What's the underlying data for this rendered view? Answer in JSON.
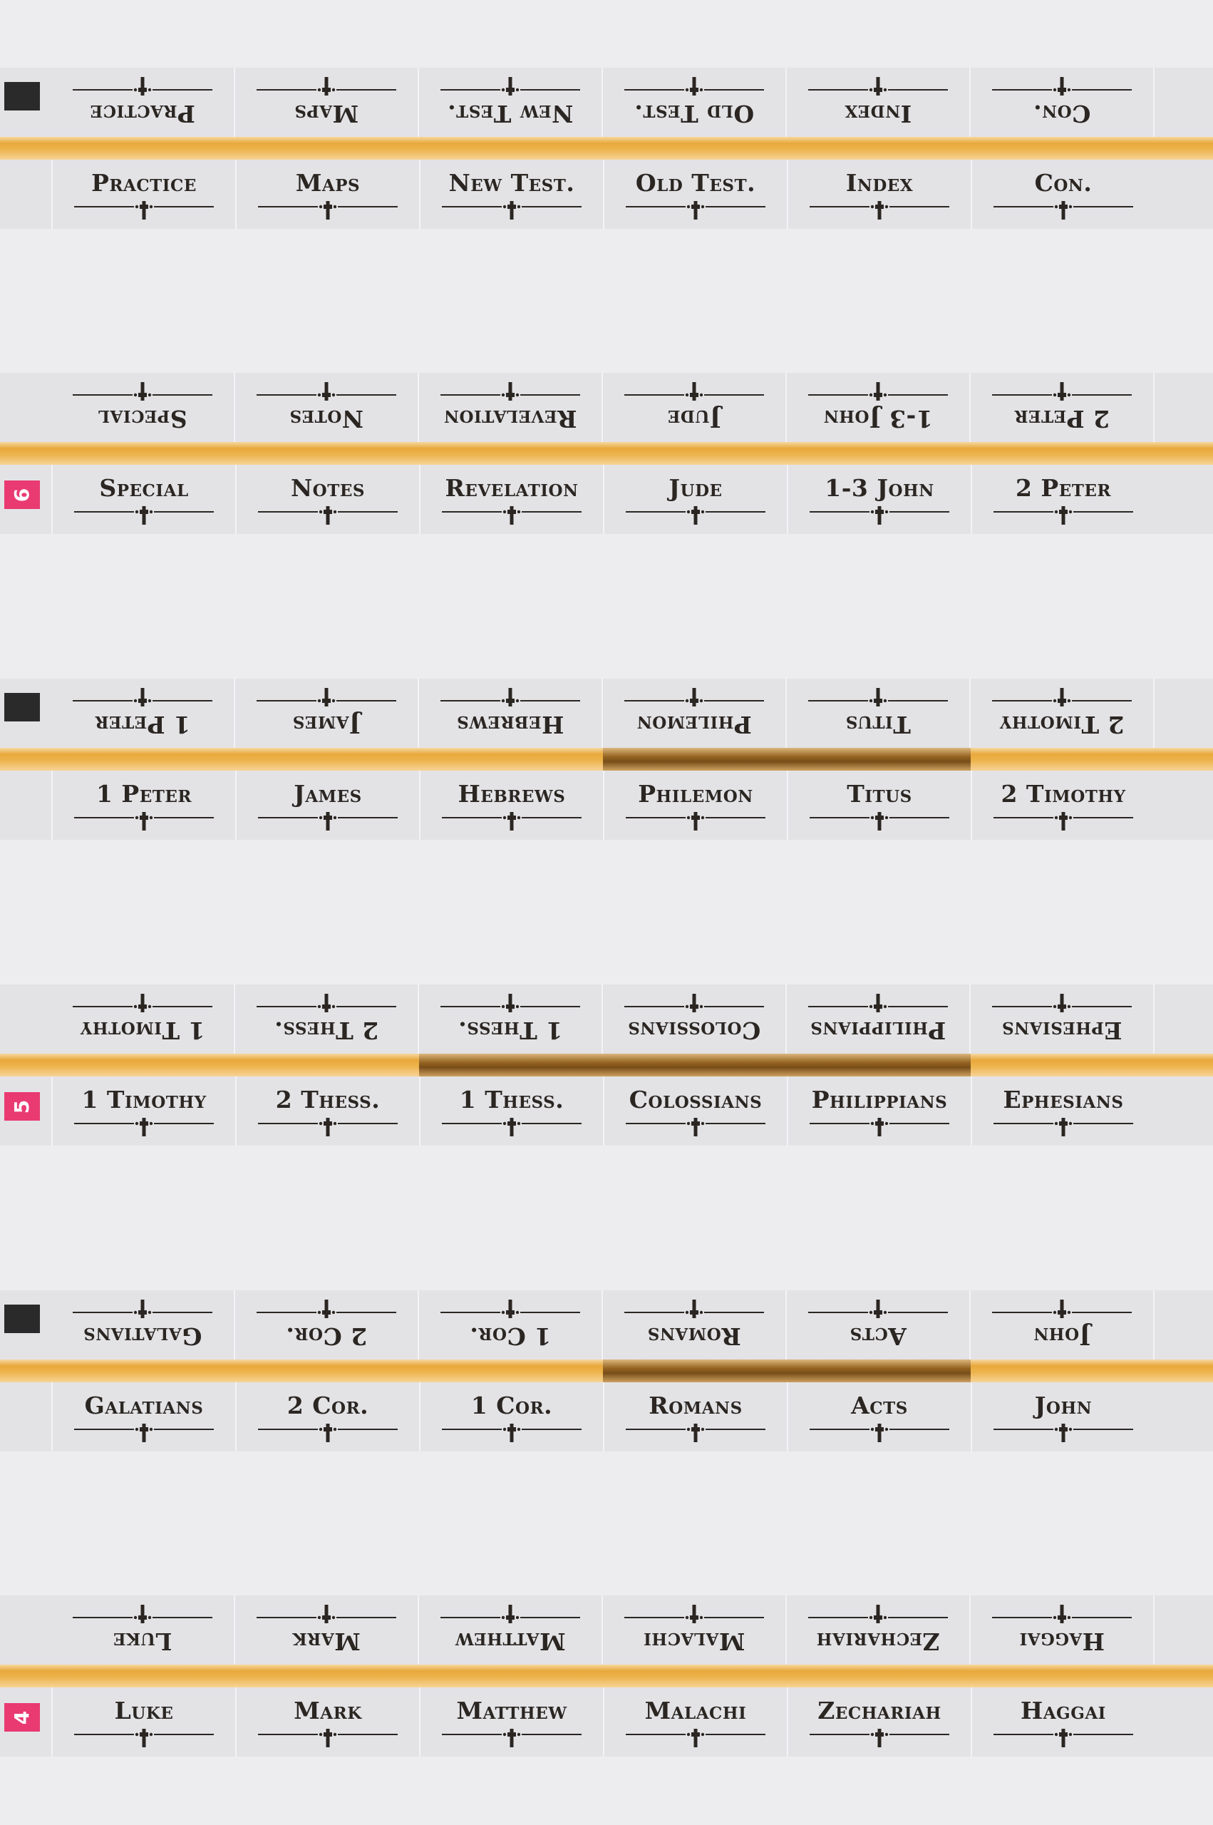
{
  "rows": [
    {
      "marker": {
        "type": "black",
        "text": ""
      },
      "tabs": [
        "Practice",
        "Maps",
        "New Test.",
        "Old Test.",
        "Index",
        "Con."
      ],
      "dark_gold": []
    },
    {
      "marker": {
        "type": "pink",
        "text": "6"
      },
      "tabs": [
        "Special",
        "Notes",
        "Revelation",
        "Jude",
        "1-3 John",
        "2 Peter"
      ],
      "dark_gold": []
    },
    {
      "marker": {
        "type": "black",
        "text": ""
      },
      "tabs": [
        "1 Peter",
        "James",
        "Hebrews",
        "Philemon",
        "Titus",
        "2 Timothy"
      ],
      "dark_gold": [
        3,
        4
      ]
    },
    {
      "marker": {
        "type": "pink",
        "text": "5"
      },
      "tabs": [
        "1 Timothy",
        "2 Thess.",
        "1 Thess.",
        "Colossians",
        "Philippians",
        "Ephesians"
      ],
      "dark_gold": [
        2,
        3,
        4
      ]
    },
    {
      "marker": {
        "type": "black",
        "text": ""
      },
      "tabs": [
        "Galatians",
        "2 Cor.",
        "1 Cor.",
        "Romans",
        "Acts",
        "John"
      ],
      "dark_gold": [
        3,
        4
      ]
    },
    {
      "marker": {
        "type": "pink",
        "text": "4"
      },
      "tabs": [
        "Luke",
        "Mark",
        "Matthew",
        "Malachi",
        "Zechariah",
        "Haggai"
      ],
      "dark_gold": []
    }
  ],
  "colors": {
    "background": "#ededf0",
    "band": "#e3e3e6",
    "gold": "#e8a93c",
    "text": "#2b2622",
    "pink_marker": "#e93a72",
    "black_marker": "#2a2a2a"
  }
}
